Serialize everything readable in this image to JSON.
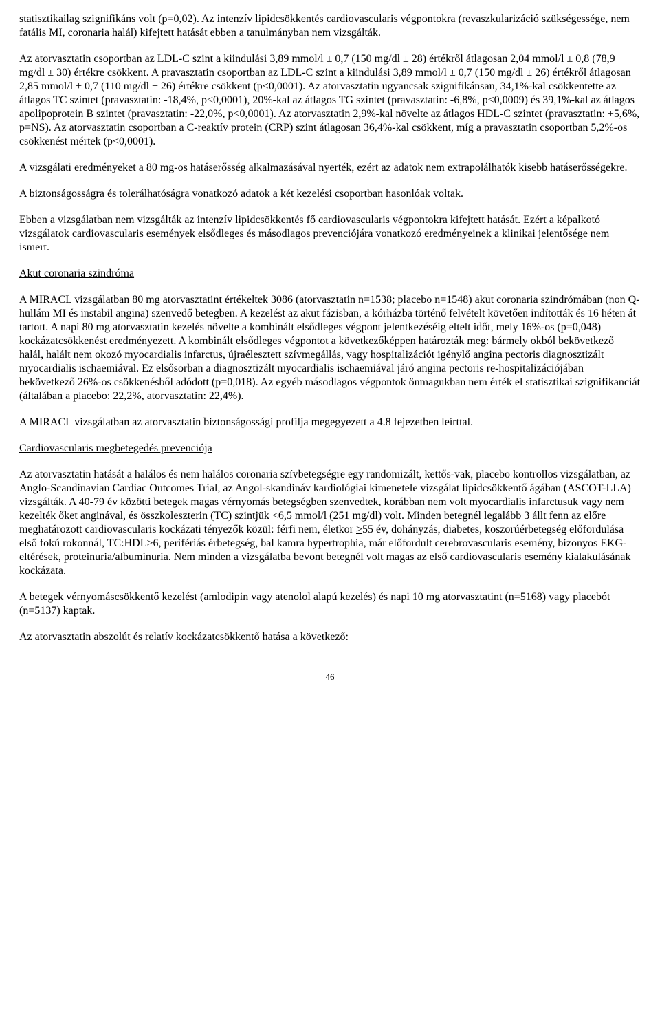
{
  "paragraphs": {
    "p1": "statisztikailag szignifikáns volt (p=0,02). Az intenzív lipidcsökkentés cardiovascularis végpontokra (revaszkularizáció szükségessége, nem fatális MI, coronaria halál) kifejtett hatását ebben a tanulmányban nem vizsgálták.",
    "p2": "Az atorvasztatin csoportban az LDL-C szint a kiindulási 3,89 mmol/l ± 0,7 (150 mg/dl ± 28) értékről átlagosan 2,04 mmol/l ± 0,8 (78,9 mg/dl ± 30) értékre csökkent. A pravasztatin csoportban az LDL-C szint a kiindulási 3,89 mmol/l ± 0,7 (150 mg/dl ± 26) értékről átlagosan 2,85 mmol/l ± 0,7 (110 mg/dl ± 26) értékre csökkent (p<0,0001). Az atorvasztatin ugyancsak szignifikánsan, 34,1%-kal csökkentette az átlagos TC szintet (pravasztatin: -18,4%, p<0,0001), 20%-kal az átlagos TG szintet (pravasztatin: -6,8%, p<0,0009) és 39,1%-kal az átlagos apolipoprotein B szintet (pravasztatin: -22,0%, p<0,0001). Az atorvasztatin 2,9%-kal növelte az átlagos HDL-C szintet (pravasztatin: +5,6%, p=NS). Az atorvasztatin csoportban a C-reaktív protein (CRP) szint átlagosan 36,4%-kal csökkent, míg a pravasztatin csoportban 5,2%-os csökkenést mértek (p<0,0001).",
    "p3": "A vizsgálati eredményeket a 80 mg-os hatáserősség alkalmazásával nyerték, ezért az adatok nem extrapolálhatók kisebb hatáserősségekre.",
    "p4": "A biztonságosságra és tolerálhatóságra vonatkozó adatok a két kezelési csoportban hasonlóak voltak.",
    "p5": "Ebben a vizsgálatban nem vizsgálták az intenzív lipidcsökkentés fő cardiovascularis végpontokra kifejtett hatását. Ezért a képalkotó vizsgálatok cardiovascularis események elsődleges és másodlagos prevenciójára vonatkozó eredményeinek a klinikai jelentősége nem ismert.",
    "h1": "Akut coronaria szindróma",
    "p6": "A MIRACL vizsgálatban 80 mg atorvasztatint értékeltek 3086  (atorvasztatin n=1538; placebo n=1548) akut coronaria szindrómában (non Q-hullám MI és instabil angina) szenvedő betegben. A kezelést az akut fázisban, a kórházba történő felvételt követően indították és 16 héten át tartott. A napi 80 mg atorvasztatin kezelés növelte a kombinált elsődleges végpont jelentkezéséig eltelt időt, mely 16%-os (p=0,048) kockázatcsökkenést eredményezett. A kombinált elsődleges végpontot a következőképpen határozták meg: bármely okból bekövetkező halál, halált nem okozó myocardialis infarctus, újraélesztett szívmegállás, vagy hospitalizációt igénylő angina pectoris diagnosztizált myocardialis ischaemiával. Ez elsősorban a diagnosztizált myocardialis ischaemiával járó angina pectoris re-hospitalizációjában bekövetkező 26%-os csökkenésből adódott (p=0,018). Az egyéb másodlagos végpontok önmagukban nem érték el statisztikai szignifikanciát (általában a placebo: 22,2%, atorvasztatin: 22,4%).",
    "p7": "A MIRACL vizsgálatban az atorvasztatin biztonságossági profilja megegyezett a 4.8 fejezetben leírttal.",
    "h2": "Cardiovascularis megbetegedés prevenciója",
    "p8a": "Az atorvasztatin hatását a halálos és nem halálos coronaria szívbetegségre egy randomizált, kettős-vak, placebo kontrollos vizsgálatban, az Anglo-Scandinavian Cardiac Outcomes Trial, az Angol-skandináv kardiológiai kimenetele vizsgálat lipidcsökkentő ágában (ASCOT-LLA) vizsgálták. A 40-79 év közötti betegek magas vérnyomás betegségben szenvedtek, korábban nem volt myocardialis infarctusuk vagy nem kezelték őket anginával, és összkoleszterin (TC) szintjük ",
    "p8b": "6,5 mmol/l (251 mg/dl) volt. Minden betegnél legalább 3 állt fenn az előre meghatározott cardiovascularis kockázati tényezők közül: férfi nem, életkor ",
    "p8c": "55 év, dohányzás, diabetes, koszorúérbetegség előfordulása első fokú rokonnál, TC:HDL>6, perifériás érbetegség, bal kamra hypertrophia, már előfordult cerebrovascularis esemény, bizonyos EKG-eltérések, proteinuria/albuminuria. Nem minden a vizsgálatba bevont betegnél volt magas az első cardiovascularis esemény kialakulásának kockázata.",
    "le": "<",
    "ge": ">",
    "p9": "A betegek vérnyomáscsökkentő kezelést (amlodipin vagy atenolol alapú kezelés) és napi 10 mg atorvasztatint (n=5168) vagy placebót (n=5137) kaptak.",
    "p10": "Az atorvasztatin abszolút és relatív kockázatcsökkentő hatása a következő:"
  },
  "page_number": "46"
}
